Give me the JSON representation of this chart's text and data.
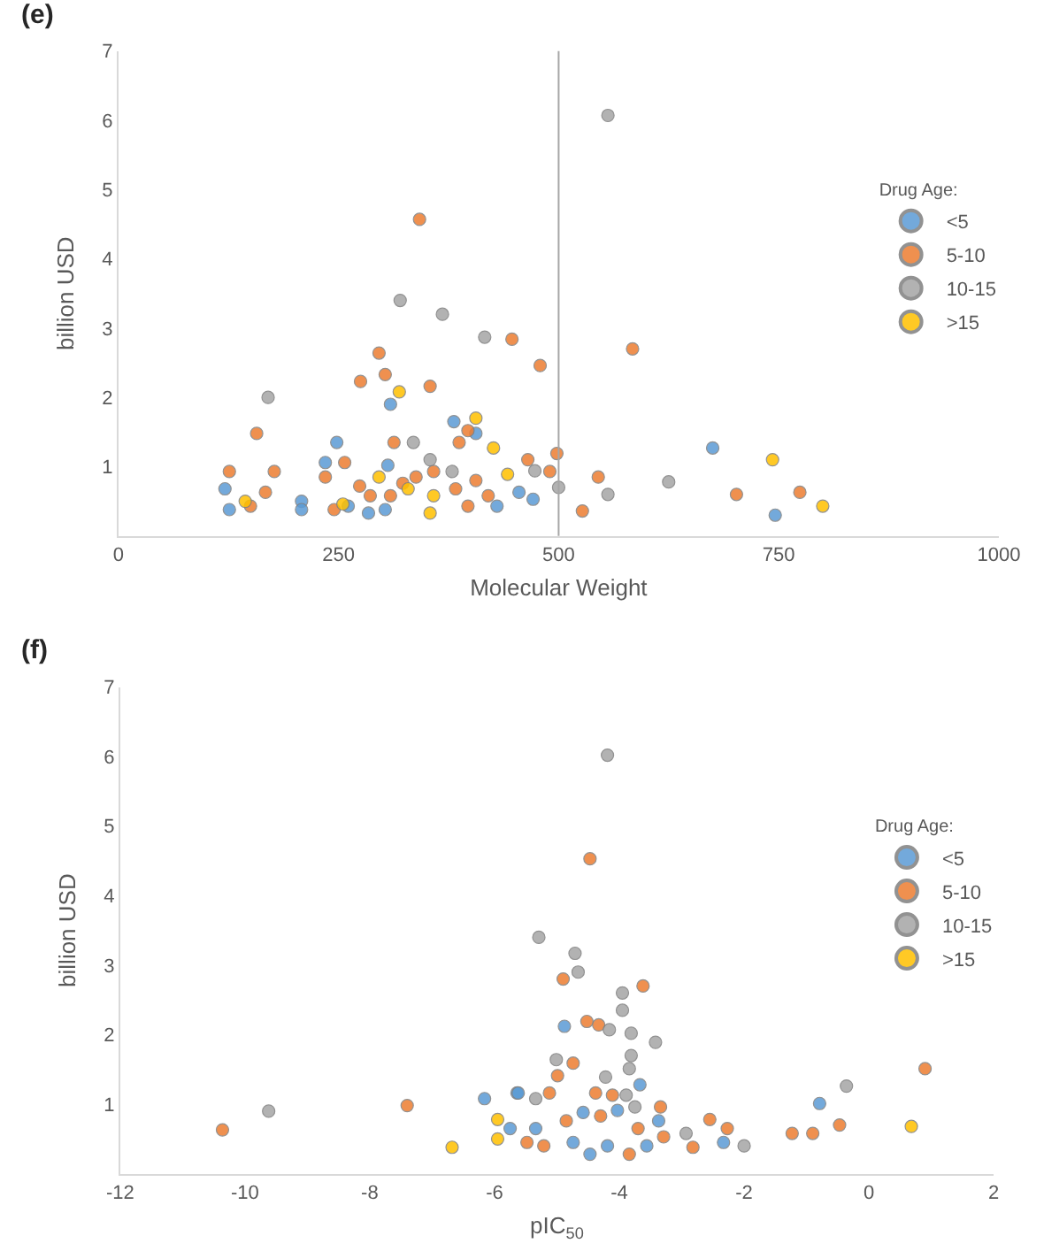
{
  "chart_data": [
    {
      "type": "scatter",
      "title": "(e)",
      "xlabel": "Molecular Weight",
      "ylabel": "billion USD",
      "legend_title": "Drug Age:",
      "legend": "right",
      "marker": "circle",
      "xlim": [
        0,
        1000
      ],
      "xticks": [
        0,
        250,
        500,
        750,
        1000
      ],
      "ylim": [
        0,
        7
      ],
      "yticks": [
        1,
        2,
        3,
        4,
        5,
        6,
        7
      ],
      "ref_lines": [
        {
          "axis": "x",
          "value": 500,
          "color": "#a6a6a6"
        }
      ],
      "series": [
        {
          "name": "<5",
          "color": "#5b9bd5",
          "x": [
            309,
            248,
            406,
            675,
            455,
            471,
            746,
            121,
            126,
            208,
            208,
            235,
            261,
            284,
            306,
            303,
            430,
            381
          ],
          "values": [
            1.9,
            1.35,
            1.48,
            1.27,
            0.63,
            0.53,
            0.3,
            0.68,
            0.38,
            0.5,
            0.38,
            1.06,
            0.43,
            0.33,
            1.02,
            0.38,
            0.43,
            1.65
          ]
        },
        {
          "name": "5-10",
          "color": "#ed7d31",
          "x": [
            342,
            447,
            479,
            584,
            296,
            303,
            275,
            354,
            157,
            397,
            313,
            498,
            465,
            545,
            702,
            774,
            527,
            490,
            126,
            150,
            167,
            177,
            235,
            245,
            257,
            274,
            286,
            309,
            323,
            338,
            358,
            383,
            397,
            406,
            420,
            387
          ],
          "values": [
            4.57,
            2.84,
            2.46,
            2.7,
            2.64,
            2.33,
            2.23,
            2.16,
            1.48,
            1.52,
            1.35,
            1.19,
            1.1,
            0.85,
            0.6,
            0.63,
            0.36,
            0.93,
            0.93,
            0.43,
            0.63,
            0.93,
            0.85,
            0.38,
            1.06,
            0.72,
            0.58,
            0.58,
            0.76,
            0.85,
            0.93,
            0.68,
            0.43,
            0.8,
            0.58,
            1.35
          ]
        },
        {
          "name": "10-15",
          "color": "#a5a5a5",
          "x": [
            556,
            320,
            368,
            416,
            170,
            335,
            556,
            625,
            500,
            473,
            354,
            379
          ],
          "values": [
            6.07,
            3.4,
            3.2,
            2.87,
            2.0,
            1.35,
            0.6,
            0.78,
            0.7,
            0.94,
            1.1,
            0.93
          ]
        },
        {
          "name": ">15",
          "color": "#ffc000",
          "x": [
            319,
            406,
            426,
            743,
            800,
            442,
            144,
            255,
            296,
            329,
            358,
            354
          ],
          "values": [
            2.08,
            1.7,
            1.27,
            1.1,
            0.43,
            0.89,
            0.5,
            0.46,
            0.85,
            0.68,
            0.58,
            0.33
          ]
        }
      ]
    },
    {
      "type": "scatter",
      "title": "(f)",
      "xlabel": "pIC$_{50}$",
      "ylabel": "billion USD",
      "legend_title": "Drug Age:",
      "legend": "right",
      "marker": "circle",
      "xlim": [
        -12,
        2
      ],
      "xticks": [
        -12,
        -10,
        -8,
        -6,
        -4,
        -2,
        0,
        2
      ],
      "ylim": [
        0,
        7
      ],
      "yticks": [
        1,
        2,
        3,
        4,
        5,
        6,
        7
      ],
      "series": [
        {
          "name": "<5",
          "color": "#5b9bd5",
          "x": [
            -6.16,
            -5.64,
            -5.75,
            -4.88,
            -3.67,
            -5.62,
            -5.34,
            -4.58,
            -4.03,
            -3.37,
            -4.74,
            -4.47,
            -4.19,
            -3.56,
            -2.33,
            -0.79
          ],
          "values": [
            1.08,
            1.16,
            0.65,
            2.12,
            1.28,
            1.16,
            0.65,
            0.88,
            0.91,
            0.76,
            0.45,
            0.28,
            0.4,
            0.4,
            0.45,
            1.01
          ]
        },
        {
          "name": "5-10",
          "color": "#ed7d31",
          "x": [
            -10.36,
            -7.4,
            -4.47,
            -4.9,
            -3.62,
            -4.52,
            -4.33,
            -4.74,
            -4.99,
            -5.12,
            -4.38,
            -4.11,
            -3.34,
            -4.85,
            -4.3,
            -3.7,
            -5.48,
            -5.21,
            -3.84,
            -3.29,
            -2.82,
            -2.55,
            -2.27,
            -1.23,
            -0.9,
            -0.47,
            0.9
          ],
          "values": [
            0.63,
            0.98,
            4.53,
            2.8,
            2.7,
            2.19,
            2.14,
            1.59,
            1.41,
            1.16,
            1.16,
            1.13,
            0.96,
            0.76,
            0.83,
            0.65,
            0.45,
            0.4,
            0.28,
            0.53,
            0.38,
            0.78,
            0.65,
            0.58,
            0.58,
            0.7,
            1.51
          ]
        },
        {
          "name": "10-15",
          "color": "#a5a5a5",
          "x": [
            -9.62,
            -4.19,
            -5.29,
            -4.71,
            -4.66,
            -3.95,
            -3.95,
            -4.16,
            -3.81,
            -3.42,
            -3.81,
            -3.84,
            -4.22,
            -5.01,
            -5.34,
            -3.89,
            -3.75,
            -2.93,
            -2.0,
            -0.36
          ],
          "values": [
            0.9,
            6.02,
            3.4,
            3.17,
            2.9,
            2.6,
            2.35,
            2.07,
            2.02,
            1.89,
            1.7,
            1.51,
            1.39,
            1.64,
            1.08,
            1.13,
            0.96,
            0.58,
            0.4,
            1.26
          ]
        },
        {
          "name": ">15",
          "color": "#ffc000",
          "x": [
            -6.68,
            -5.95,
            -5.95,
            0.68
          ],
          "values": [
            0.38,
            0.78,
            0.5,
            0.68
          ]
        }
      ]
    }
  ]
}
